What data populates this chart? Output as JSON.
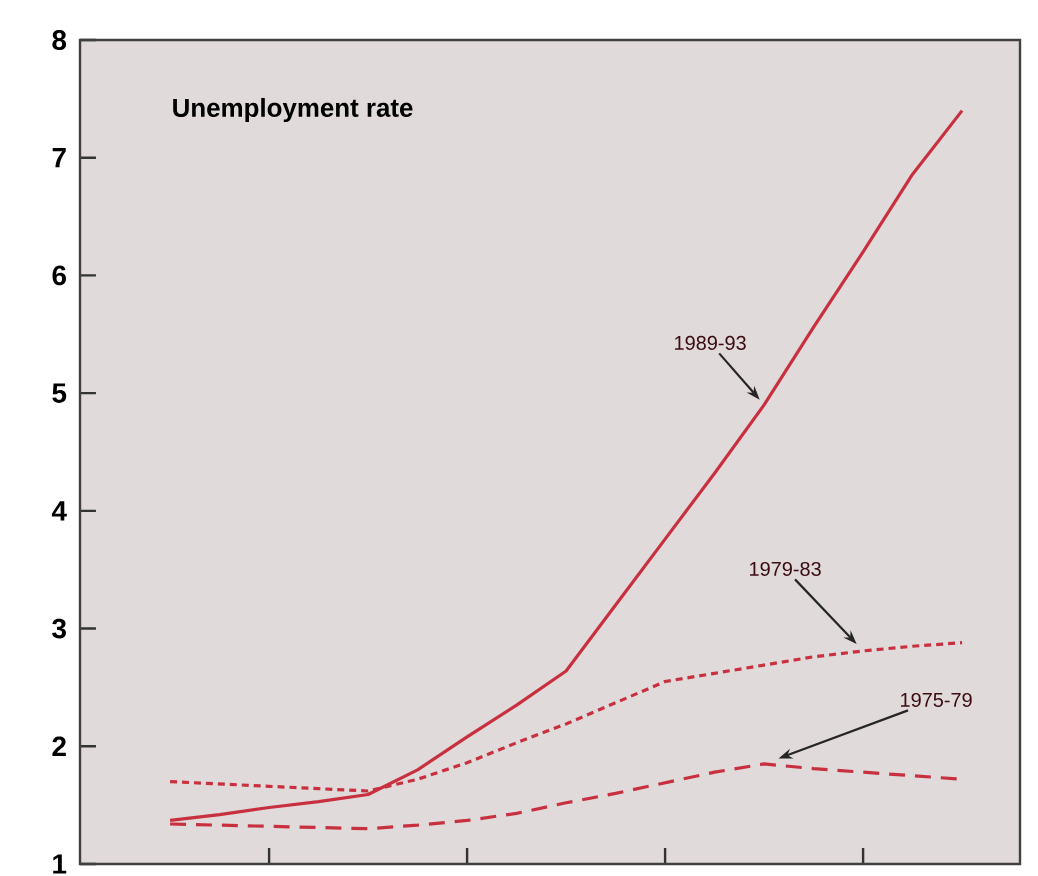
{
  "chart_data": {
    "type": "line",
    "title": "Unemployment rate",
    "categories": [
      null,
      null,
      null,
      null,
      null,
      null,
      null,
      null,
      null,
      null,
      null,
      null,
      null,
      null,
      null,
      null,
      null
    ],
    "ylim": [
      1,
      8
    ],
    "yticks": [
      1,
      2,
      3,
      4,
      5,
      6,
      7,
      8
    ],
    "tick_labels": "y",
    "series": [
      {
        "name": "1989-93",
        "color": "#c8303f",
        "line_style": "solid",
        "values": [
          1.37,
          1.42,
          1.48,
          1.53,
          1.59,
          1.8,
          2.08,
          2.35,
          2.64,
          3.2,
          3.76,
          4.32,
          4.9,
          5.56,
          6.2,
          6.86,
          7.4
        ]
      },
      {
        "name": "1979-83",
        "color": "#c8303f",
        "line_style": "dotted",
        "values": [
          1.7,
          1.68,
          1.66,
          1.64,
          1.62,
          1.72,
          1.86,
          2.03,
          2.19,
          2.37,
          2.55,
          2.62,
          2.69,
          2.76,
          2.81,
          2.85,
          2.88
        ]
      },
      {
        "name": "1975-79",
        "color": "#c8303f",
        "line_style": "dashed",
        "values": [
          1.34,
          1.33,
          1.32,
          1.31,
          1.3,
          1.33,
          1.37,
          1.43,
          1.52,
          1.6,
          1.69,
          1.78,
          1.85,
          1.81,
          1.78,
          1.75,
          1.72
        ]
      }
    ]
  }
}
